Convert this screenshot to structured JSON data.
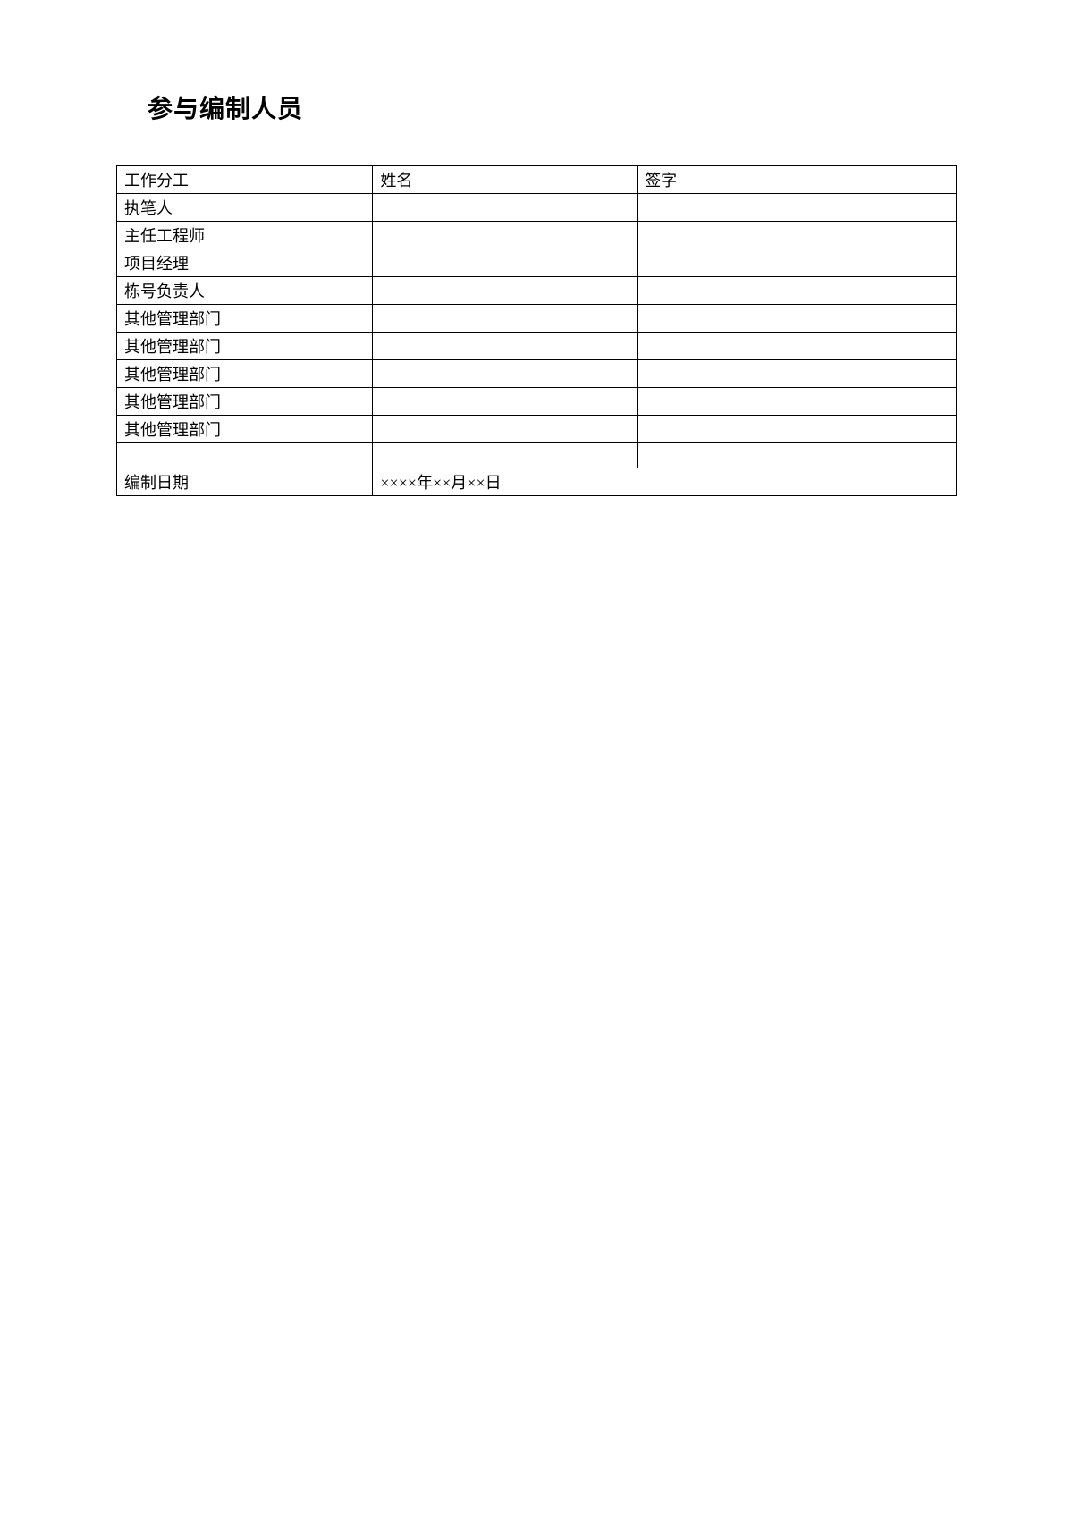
{
  "title": "参与编制人员",
  "table": {
    "columns": [
      "工作分工",
      "姓名",
      "签字"
    ],
    "rows": [
      [
        "执笔人",
        "",
        ""
      ],
      [
        "主任工程师",
        "",
        ""
      ],
      [
        "项目经理",
        "",
        ""
      ],
      [
        "栋号负责人",
        "",
        ""
      ],
      [
        "其他管理部门",
        "",
        ""
      ],
      [
        "其他管理部门",
        "",
        ""
      ],
      [
        "其他管理部门",
        "",
        ""
      ],
      [
        "其他管理部门",
        "",
        ""
      ],
      [
        "其他管理部门",
        "",
        ""
      ],
      [
        "",
        "",
        ""
      ]
    ],
    "dateRow": {
      "label": "编制日期",
      "value": "××××年××月××日"
    }
  },
  "styling": {
    "background_color": "#ffffff",
    "text_color": "#000000",
    "border_color": "#000000",
    "title_fontsize": 28,
    "cell_fontsize": 18,
    "font_family": "SimSun"
  }
}
